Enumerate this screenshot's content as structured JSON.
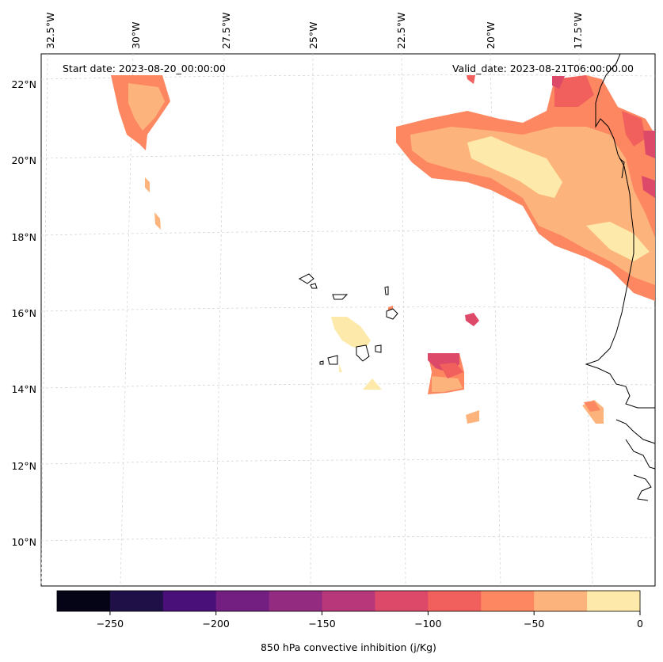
{
  "map": {
    "start_date": "Start date: 2023-08-20_00:00:00",
    "valid_date": "Valid_date: 2023-08-21T06:00:00.00",
    "lon_labels": [
      "32.5°W",
      "30°W",
      "27.5°W",
      "25°W",
      "22.5°W",
      "20°W",
      "17.5°W"
    ],
    "lat_labels": [
      "22°N",
      "20°N",
      "18°N",
      "16°N",
      "14°N",
      "12°N",
      "10°N"
    ]
  },
  "colorbar": {
    "title": "850 hPa convective inhibition (j/Kg)",
    "tick_labels": [
      "−250",
      "−200",
      "−150",
      "−100",
      "−50",
      "0"
    ],
    "colors": [
      "#050417",
      "#1f1147",
      "#4a1079",
      "#721f81",
      "#932b80",
      "#b7377a",
      "#dd4a69",
      "#f1605d",
      "#fc8761",
      "#fdb47c",
      "#fde9a9"
    ]
  }
}
